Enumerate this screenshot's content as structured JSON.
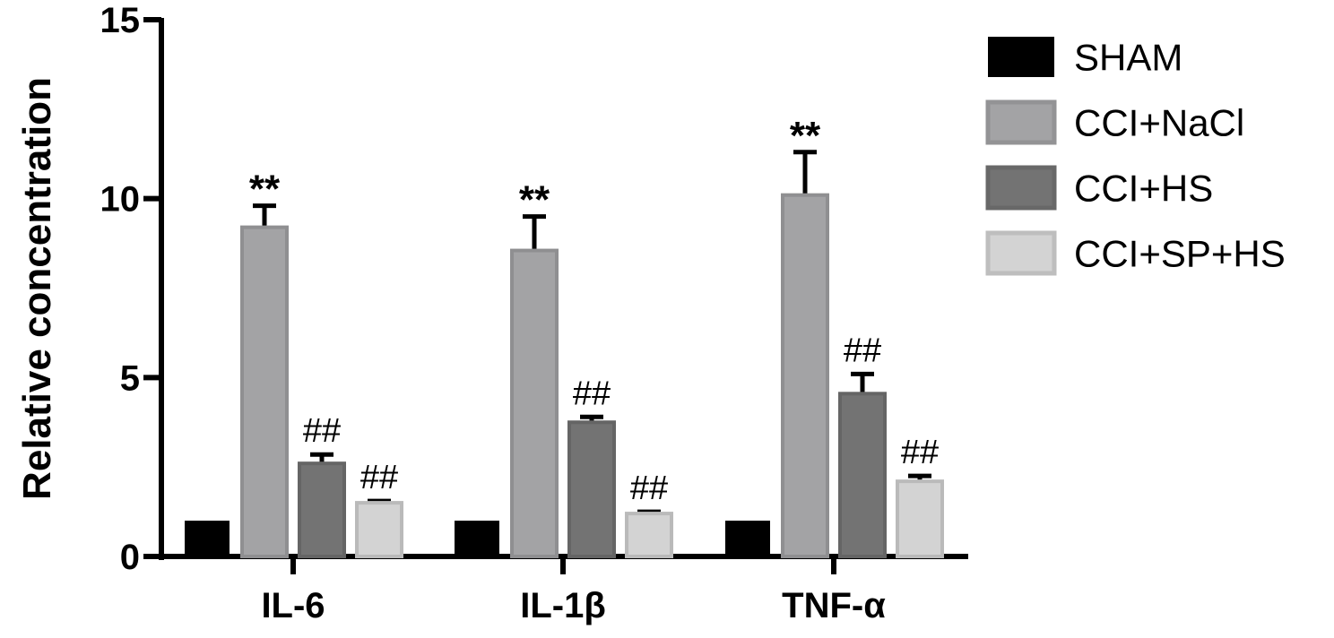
{
  "chart_data": {
    "type": "bar",
    "title": "",
    "xlabel": "",
    "ylabel": "Relative concentration",
    "ylim": [
      0,
      15
    ],
    "yticks": [
      0,
      5,
      10,
      15
    ],
    "categories": [
      "IL-6",
      "IL-1β",
      "TNF-α"
    ],
    "legend_position": "right",
    "series": [
      {
        "name": "SHAM",
        "color": "#000000",
        "values": [
          1.0,
          1.0,
          1.0
        ],
        "errors": [
          0,
          0,
          0
        ],
        "annotations": [
          "",
          "",
          ""
        ]
      },
      {
        "name": "CCI+NaCl",
        "color": "#a3a3a5",
        "values": [
          9.2,
          8.55,
          10.1
        ],
        "errors": [
          0.6,
          0.95,
          1.2
        ],
        "annotations": [
          "**",
          "**",
          "**"
        ]
      },
      {
        "name": "CCI+HS",
        "color": "#737373",
        "values": [
          2.6,
          3.75,
          4.55
        ],
        "errors": [
          0.25,
          0.15,
          0.55
        ],
        "annotations": [
          "##",
          "##",
          "##"
        ]
      },
      {
        "name": "CCI+SP+HS",
        "color": "#d3d3d3",
        "values": [
          1.5,
          1.2,
          2.1
        ],
        "errors": [
          0.05,
          0.05,
          0.15
        ],
        "annotations": [
          "##",
          "##",
          "##"
        ]
      }
    ]
  }
}
